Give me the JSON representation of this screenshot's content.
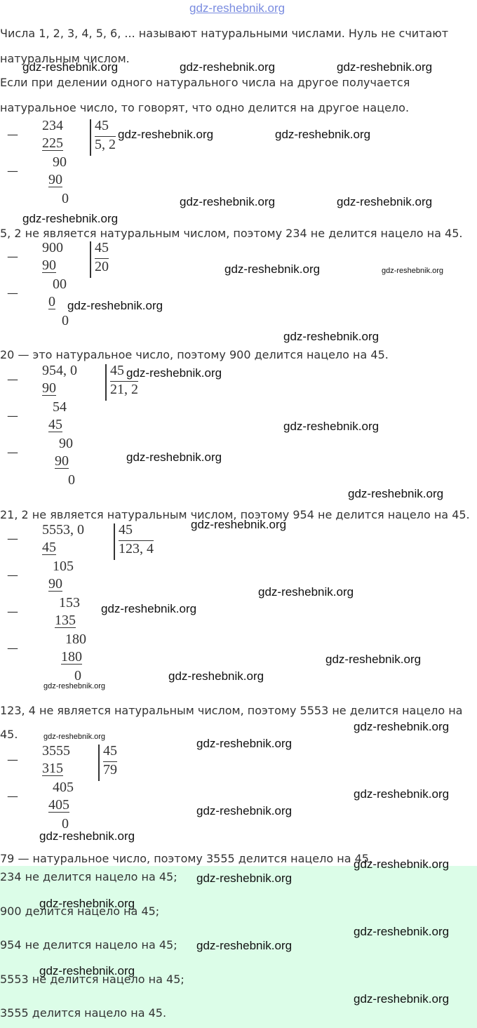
{
  "header": {
    "site": "gdz-reshebnik.org"
  },
  "intro": [
    "Числа 1, 2, 3, 4, 5, 6, ... называют натуральными числами. Нуль не считают натуральным числом.",
    "Если при делении одного натурального числа на другое получается натуральное число, то говорят, что одно делится на другое нацело."
  ],
  "minus_sign": "—",
  "divisions": [
    {
      "steps": [
        "234",
        "225",
        "90",
        "90",
        "0"
      ],
      "divisor": "45",
      "quotient": "5, 2",
      "conclusion": "5, 2 не является натуральным числом, поэтому 234 не делится нацело на 45."
    },
    {
      "steps": [
        "900",
        "90",
        "00",
        "0",
        "0"
      ],
      "divisor": "45",
      "quotient": "20",
      "conclusion": "20 — это натуральное число, поэтому 900 делится нацело на 45."
    },
    {
      "steps": [
        "954, 0",
        "90",
        "54",
        "45",
        "90",
        "90",
        "0"
      ],
      "divisor": "45",
      "quotient": "21, 2",
      "conclusion": "21, 2 не является натуральным числом, поэтому 954 не делится нацело на 45."
    },
    {
      "steps": [
        "5553, 0",
        "45",
        "105",
        "90",
        "153",
        "135",
        "180",
        "180",
        "0"
      ],
      "divisor": "45",
      "quotient": "123, 4",
      "conclusion": "123, 4 не является натуральным числом, поэтому 5553 не делится нацело на 45."
    },
    {
      "steps": [
        "3555",
        "315",
        "405",
        "405",
        "0"
      ],
      "divisor": "45",
      "quotient": "79",
      "conclusion": "79 — натуральное число, поэтому 3555 делится нацело на 45."
    }
  ],
  "answer": [
    "234 не делится нацело на 45;",
    "900 делится нацело на 45;",
    "954 не делится нацело на 45;",
    "5553 не делится нацело на 45;",
    "3555 делится нацело на 45."
  ],
  "watermarks": [
    "gdz-reshebnik.org",
    "gdz-reshebnik.org",
    "gdz-reshebnik.org",
    "gdz-reshebnik.org",
    "gdz-reshebnik.org",
    "gdz-reshebnik.org",
    "gdz-reshebnik.org",
    "gdz-reshebnik.org",
    "gdz-reshebnik.org",
    "gdz-reshebnik.org",
    "gdz-reshebnik.org",
    "gdz-reshebnik.org",
    "gdz-reshebnik.org",
    "gdz-reshebnik.org",
    "gdz-reshebnik.org",
    "gdz-reshebnik.org",
    "gdz-reshebnik.org",
    "gdz-reshebnik.org",
    "gdz-reshebnik.org",
    "gdz-reshebnik.org",
    "gdz-reshebnik.org",
    "gdz-reshebnik.org",
    "gdz-reshebnik.org",
    "gdz-reshebnik.org",
    "gdz-reshebnik.org",
    "gdz-reshebnik.org",
    "gdz-reshebnik.org",
    "gdz-reshebnik.org",
    "gdz-reshebnik.org",
    "gdz-reshebnik.org",
    "gdz-reshebnik.org",
    "gdz-reshebnik.org",
    "gdz-reshebnik.org",
    "gdz-reshebnik.org",
    "gdz-reshebnik.org"
  ]
}
